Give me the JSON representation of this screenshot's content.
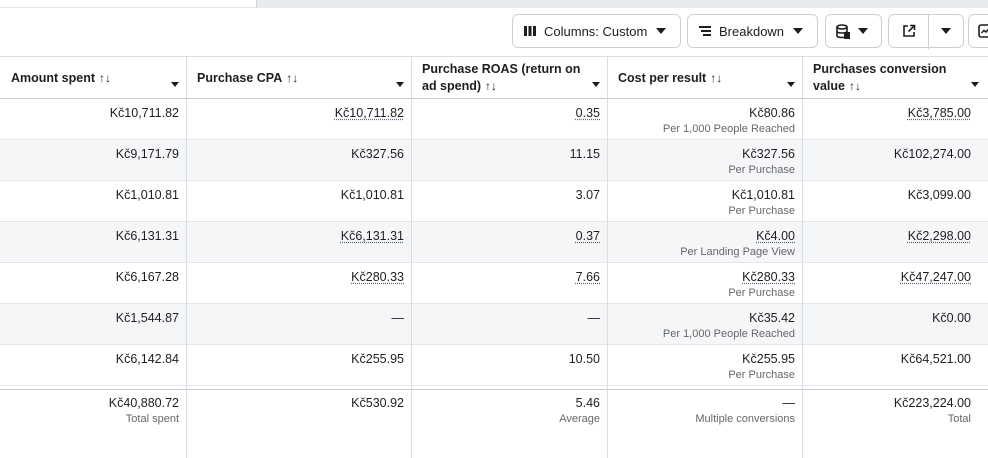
{
  "toolbar": {
    "columns_label": "Columns: Custom",
    "breakdown_label": "Breakdown"
  },
  "headers": [
    {
      "label": "Amount spent",
      "sort": "↑↓"
    },
    {
      "label": "Purchase CPA",
      "sort": "↑↓"
    },
    {
      "label": "Purchase ROAS (return on ad spend)",
      "sort": "↑↓"
    },
    {
      "label": "Cost per result",
      "sort": "↑↓"
    },
    {
      "label": "Purchases conversion value",
      "sort": "↑↓"
    }
  ],
  "rows": [
    {
      "spent": "Kč10,711.82",
      "cpa": "Kč10,711.82",
      "roas": "0.35",
      "cpr": "Kč80.86",
      "cpr_sub": "Per 1,000 People Reached",
      "pcv": "Kč3,785.00"
    },
    {
      "spent": "Kč9,171.79",
      "cpa": "Kč327.56",
      "roas": "11.15",
      "cpr": "Kč327.56",
      "cpr_sub": "Per Purchase",
      "pcv": "Kč102,274.00"
    },
    {
      "spent": "Kč1,010.81",
      "cpa": "Kč1,010.81",
      "roas": "3.07",
      "cpr": "Kč1,010.81",
      "cpr_sub": "Per Purchase",
      "pcv": "Kč3,099.00"
    },
    {
      "spent": "Kč6,131.31",
      "cpa": "Kč6,131.31",
      "roas": "0.37",
      "cpr": "Kč4.00",
      "cpr_sub": "Per Landing Page View",
      "pcv": "Kč2,298.00"
    },
    {
      "spent": "Kč6,167.28",
      "cpa": "Kč280.33",
      "roas": "7.66",
      "cpr": "Kč280.33",
      "cpr_sub": "Per Purchase",
      "pcv": "Kč47,247.00"
    },
    {
      "spent": "Kč1,544.87",
      "cpa": "—",
      "roas": "—",
      "cpr": "Kč35.42",
      "cpr_sub": "Per 1,000 People Reached",
      "pcv": "Kč0.00"
    },
    {
      "spent": "Kč6,142.84",
      "cpa": "Kč255.95",
      "roas": "10.50",
      "cpr": "Kč255.95",
      "cpr_sub": "Per Purchase",
      "pcv": "Kč64,521.00"
    }
  ],
  "totals": {
    "spent": "Kč40,880.72",
    "spent_sub": "Total spent",
    "cpa": "Kč530.92",
    "roas": "5.46",
    "roas_sub": "Average",
    "cpr": "—",
    "cpr_sub": "Multiple conversions",
    "pcv": "Kč223,224.00",
    "pcv_sub": "Total"
  },
  "icons": {
    "columns": "columns-icon",
    "breakdown": "breakdown-icon",
    "reports": "reports-icon",
    "export": "export-icon",
    "chart": "chart-icon"
  }
}
